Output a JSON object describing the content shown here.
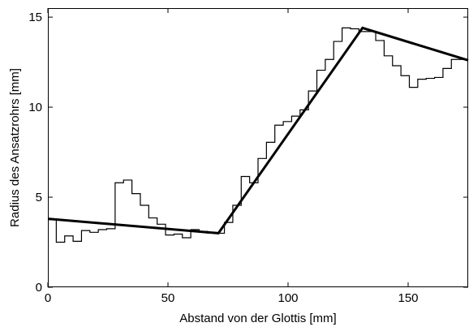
{
  "chart_data": {
    "type": "line",
    "title": "",
    "xlabel": "Abstand von der Glottis [mm]",
    "ylabel": "Radius des Ansatzrohrs [mm]",
    "xlim": [
      0,
      175
    ],
    "ylim": [
      0,
      15.5
    ],
    "xticks": [
      0,
      50,
      100,
      150
    ],
    "yticks": [
      0,
      5,
      10,
      15
    ],
    "grid": false,
    "legend": "none",
    "series": [
      {
        "style": "step",
        "line_width": "thin",
        "color": "#000000",
        "x": [
          0,
          3.5,
          7,
          10.5,
          14,
          17.5,
          21,
          24.5,
          28,
          31.5,
          35,
          38.5,
          42,
          45.5,
          49,
          52.5,
          56,
          59.5,
          63,
          66.5,
          70,
          73.5,
          77,
          80.5,
          84,
          87.5,
          91,
          94.5,
          98,
          101.5,
          105,
          108.5,
          112,
          115.5,
          119,
          122.5,
          126,
          129.5,
          133,
          136.5,
          140,
          143.5,
          147,
          150.5,
          154,
          157.5,
          161,
          164.5,
          168,
          171.5,
          175
        ],
        "y": [
          3.75,
          2.5,
          2.85,
          2.55,
          3.15,
          3.05,
          3.2,
          3.25,
          5.8,
          5.95,
          5.2,
          4.55,
          3.85,
          3.5,
          2.9,
          2.95,
          2.75,
          3.2,
          3.1,
          3.0,
          3.0,
          3.6,
          4.55,
          6.15,
          5.8,
          7.15,
          8.05,
          9.0,
          9.2,
          9.5,
          9.85,
          10.9,
          12.05,
          12.65,
          13.65,
          14.4,
          14.35,
          14.2,
          14.2,
          13.7,
          12.85,
          12.3,
          11.75,
          11.1,
          11.55,
          11.6,
          11.65,
          12.15,
          12.65,
          12.65,
          12.65
        ]
      },
      {
        "style": "line",
        "line_width": "thick",
        "color": "#000000",
        "x": [
          0,
          71,
          131,
          175
        ],
        "y": [
          3.8,
          3.0,
          14.4,
          12.6
        ]
      }
    ]
  }
}
